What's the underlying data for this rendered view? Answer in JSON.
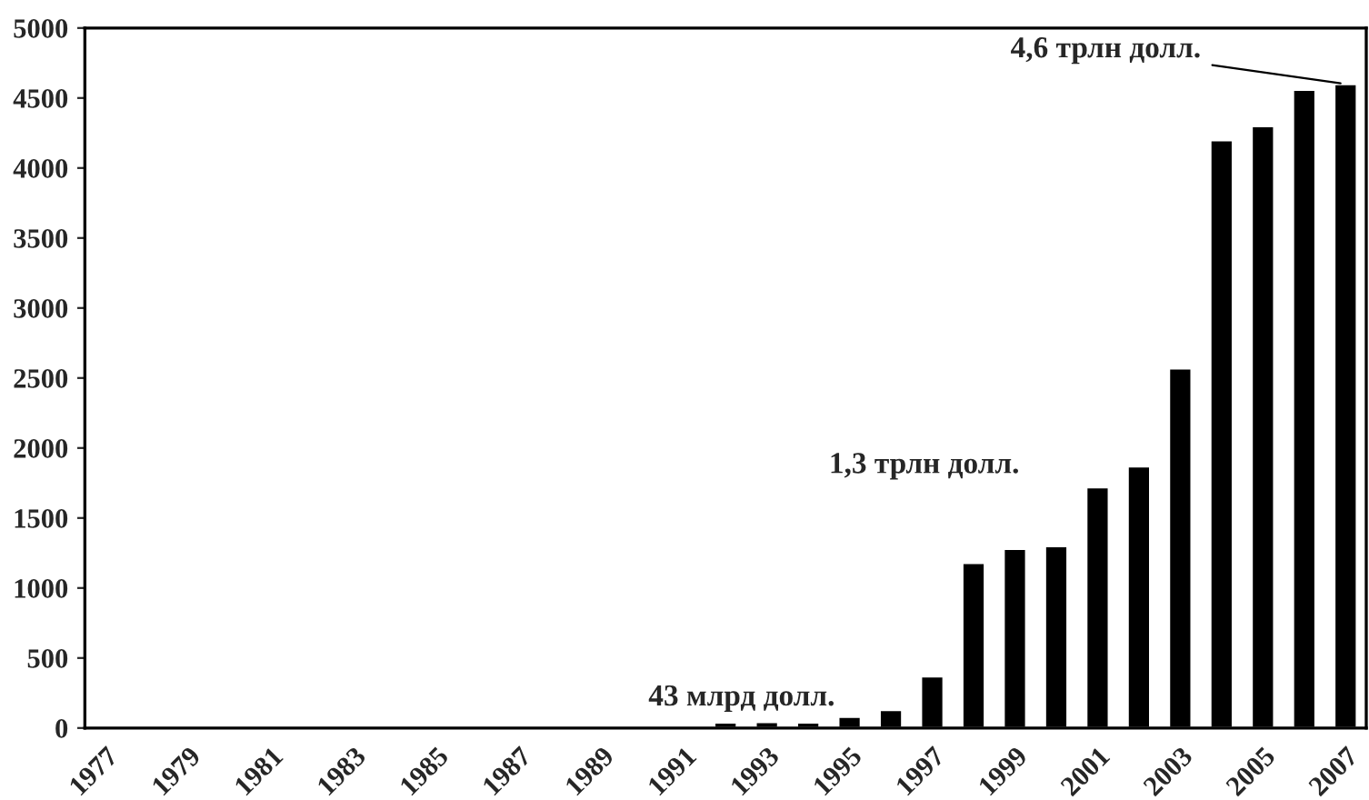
{
  "chart_data": {
    "type": "bar",
    "categories": [
      "1977",
      null,
      "1979",
      null,
      "1981",
      null,
      "1983",
      null,
      "1985",
      null,
      "1987",
      null,
      "1989",
      null,
      "1991",
      null,
      "1993",
      null,
      "1995",
      null,
      "1997",
      null,
      "1999",
      null,
      "2001",
      null,
      "2003",
      null,
      "2005",
      null,
      "2007"
    ],
    "values": [
      null,
      null,
      null,
      null,
      null,
      null,
      null,
      null,
      null,
      null,
      null,
      null,
      null,
      null,
      null,
      40,
      43,
      40,
      80,
      130,
      370,
      1180,
      1280,
      1300,
      1720,
      1870,
      2570,
      4200,
      4300,
      4560,
      4600
    ],
    "color": "#000000",
    "ylim": [
      0,
      5000
    ],
    "yticks": [
      0,
      500,
      1000,
      1500,
      2000,
      2500,
      3000,
      3500,
      4000,
      4500,
      5000
    ],
    "grid": false,
    "annotations": [
      {
        "text": "43 млрд долл.",
        "x": "1993",
        "y": 43
      },
      "1,3 трлн долл.",
      {
        "text": "4,6 трлн долл.",
        "x": "2007",
        "y": 4600
      }
    ]
  }
}
